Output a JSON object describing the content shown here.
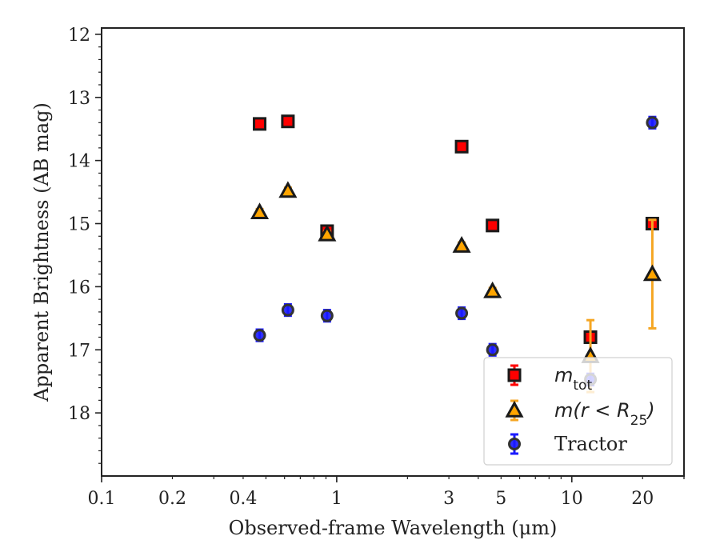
{
  "chart_data": {
    "type": "scatter",
    "xlabel": "Observed-frame Wavelength (μm)",
    "ylabel": "Apparent Brightness (AB mag)",
    "xscale": "log",
    "xlim": [
      0.1,
      30
    ],
    "ylim": [
      19.0,
      11.9
    ],
    "y_inverted": true,
    "xticks": [
      {
        "value": 0.1,
        "label": "0.1"
      },
      {
        "value": 0.2,
        "label": "0.2"
      },
      {
        "value": 0.4,
        "label": "0.4"
      },
      {
        "value": 1,
        "label": "1"
      },
      {
        "value": 3,
        "label": "3"
      },
      {
        "value": 5,
        "label": "5"
      },
      {
        "value": 10,
        "label": "10"
      },
      {
        "value": 20,
        "label": "20"
      }
    ],
    "yticks": [
      {
        "value": 12,
        "label": "12"
      },
      {
        "value": 13,
        "label": "13"
      },
      {
        "value": 14,
        "label": "14"
      },
      {
        "value": 15,
        "label": "15"
      },
      {
        "value": 16,
        "label": "16"
      },
      {
        "value": 17,
        "label": "17"
      },
      {
        "value": 18,
        "label": "18"
      }
    ],
    "grid": false,
    "legend_position": "lower-right",
    "series": [
      {
        "name": "m_tot",
        "legend_main": "m",
        "legend_sub": "tot",
        "marker": "square",
        "fill": "#ff0000",
        "edge": "#1a1a1a",
        "errcolor": "#ff0000",
        "points": [
          {
            "x": 0.47,
            "y": 13.42,
            "err": 0.05
          },
          {
            "x": 0.62,
            "y": 13.38,
            "err": 0.05
          },
          {
            "x": 0.91,
            "y": 15.12,
            "err": 0.05
          },
          {
            "x": 3.4,
            "y": 13.78,
            "err": 0.05
          },
          {
            "x": 4.6,
            "y": 15.03,
            "err": 0.05
          },
          {
            "x": 12.0,
            "y": 16.8,
            "err": 0.07
          },
          {
            "x": 22.0,
            "y": 15.0,
            "err": 0.06
          }
        ]
      },
      {
        "name": "m(r < R25)",
        "legend_main": "m(r < R",
        "legend_sub": "25",
        "legend_tail": ")",
        "marker": "triangle",
        "fill": "#ffa500",
        "edge": "#1a1a1a",
        "errcolor": "#f5a623",
        "points": [
          {
            "x": 0.47,
            "y": 14.82,
            "err": 0.05
          },
          {
            "x": 0.62,
            "y": 14.48,
            "err": 0.05
          },
          {
            "x": 0.91,
            "y": 15.17,
            "err": 0.05
          },
          {
            "x": 3.4,
            "y": 15.35,
            "err": 0.05
          },
          {
            "x": 4.6,
            "y": 16.07,
            "err": 0.05
          },
          {
            "x": 12.0,
            "y": 17.1,
            "err": 0.57
          },
          {
            "x": 22.0,
            "y": 15.8,
            "err": 0.86
          }
        ]
      },
      {
        "name": "Tractor",
        "legend_main": "Tractor",
        "marker": "circle",
        "fill": "#1a1aff",
        "edge": "#333333",
        "errcolor": "#1a1aff",
        "points": [
          {
            "x": 0.47,
            "y": 16.77,
            "err": 0.09
          },
          {
            "x": 0.62,
            "y": 16.37,
            "err": 0.09
          },
          {
            "x": 0.91,
            "y": 16.46,
            "err": 0.09
          },
          {
            "x": 3.4,
            "y": 16.42,
            "err": 0.09
          },
          {
            "x": 4.6,
            "y": 17.0,
            "err": 0.09
          },
          {
            "x": 12.0,
            "y": 17.47,
            "err": 0.09
          },
          {
            "x": 22.0,
            "y": 13.4,
            "err": 0.09
          }
        ]
      }
    ]
  }
}
